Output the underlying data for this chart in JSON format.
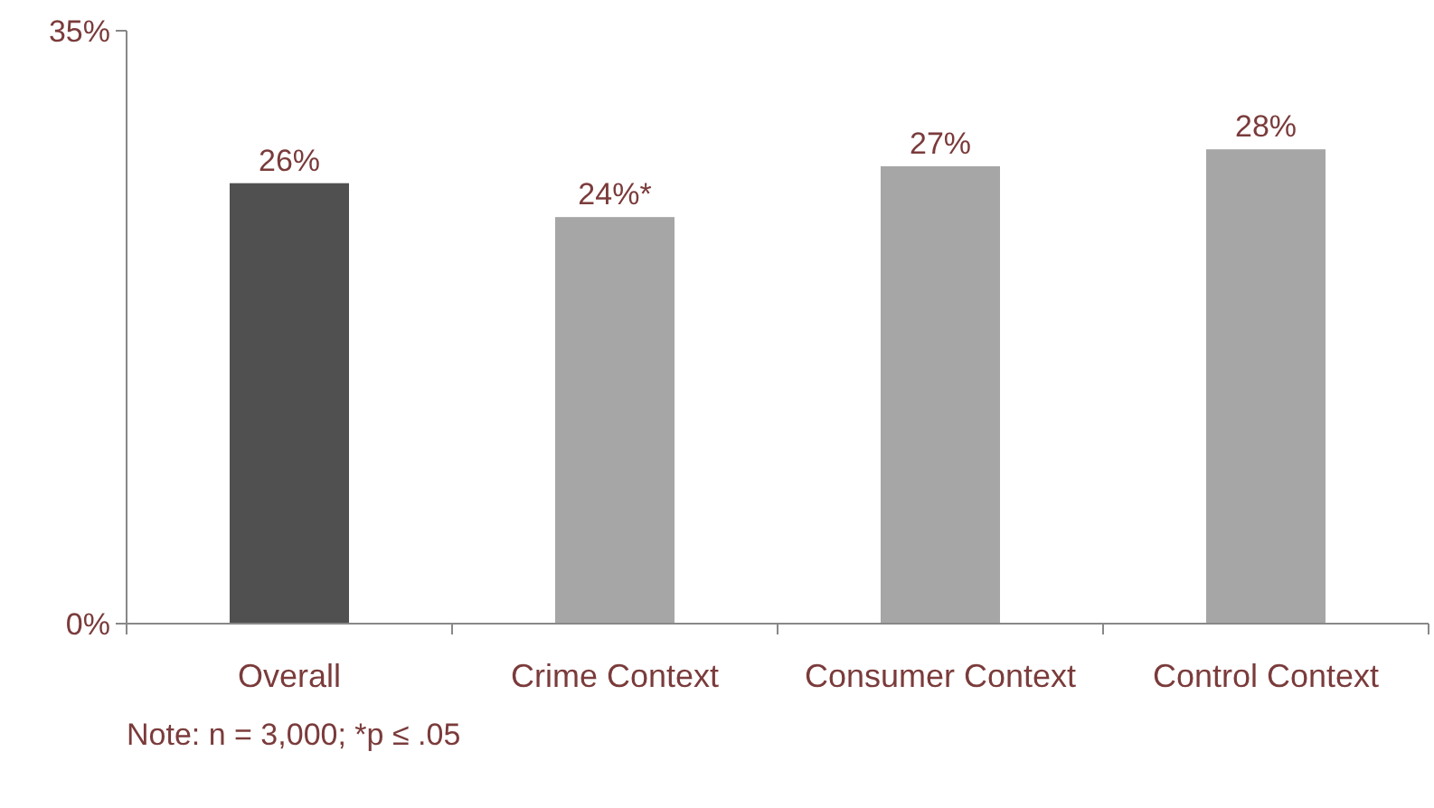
{
  "chart_data": {
    "type": "bar",
    "categories": [
      "Overall",
      "Crime Context",
      "Consumer Context",
      "Control Context"
    ],
    "values": [
      26,
      24,
      27,
      28
    ],
    "colors": [
      "#505050",
      "#a6a6a6",
      "#a6a6a6",
      "#a6a6a6"
    ],
    "value_labels": [
      "26%",
      "24%*",
      "27%",
      "28%"
    ],
    "ylim": [
      0,
      35
    ],
    "yticks": [
      {
        "value": 0,
        "label": "0%"
      },
      {
        "value": 35,
        "label": "35%"
      }
    ],
    "annotations": [
      "Note: n = 3,000;  *p ≤ .05"
    ]
  }
}
